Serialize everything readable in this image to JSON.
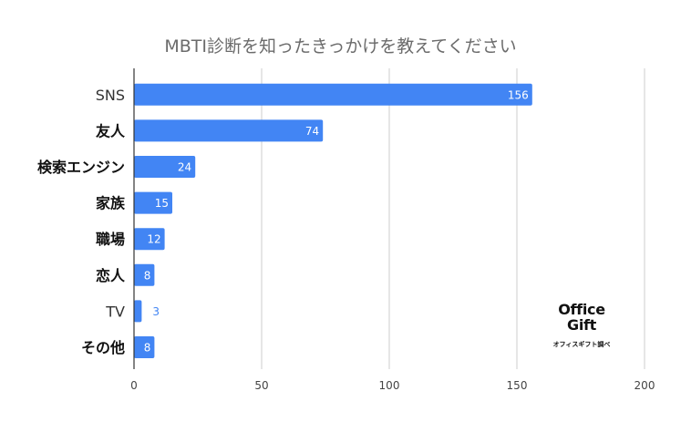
{
  "chart_data": {
    "type": "bar",
    "orientation": "horizontal",
    "title": "MBTI診断を知ったきっかけを教えてください",
    "categories": [
      "SNS",
      "友人",
      "検索エンジン",
      "家族",
      "職場",
      "恋人",
      "TV",
      "その他"
    ],
    "values": [
      156,
      74,
      24,
      15,
      12,
      8,
      3,
      8
    ],
    "xlim": [
      0,
      200
    ],
    "xticks": [
      0,
      50,
      100,
      150,
      200
    ],
    "grid": true,
    "legend": "none",
    "bar_color": "#4285f4",
    "label_inside_color": "#ffffff",
    "label_outside_color": "#4285f4"
  },
  "logo": {
    "line1": "Office",
    "line2": "Gift",
    "caption": "オフィスギフト調べ"
  }
}
